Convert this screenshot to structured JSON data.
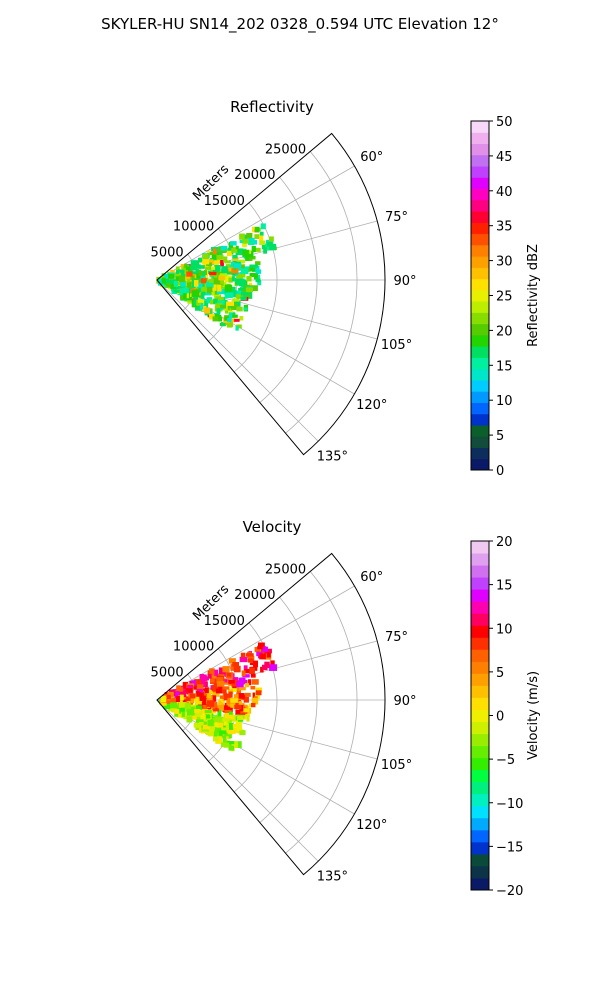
{
  "title": "SKYLER-HU  SN14_202  0328_0.594 UTC Elevation 12°",
  "chart_data": [
    {
      "type": "polar-sector",
      "title": "Reflectivity",
      "range_label": "Meters",
      "range_ticks": [
        "5000",
        "10000",
        "15000",
        "20000",
        "25000"
      ],
      "range_values": [
        5000,
        10000,
        15000,
        20000,
        25000
      ],
      "range_max": 28500,
      "angle_ticks": [
        "60°",
        "75°",
        "90°",
        "105°",
        "120°",
        "135°"
      ],
      "angle_values": [
        60,
        75,
        90,
        105,
        120,
        135
      ],
      "theta_range": [
        50,
        140
      ],
      "colorbar": {
        "label": "Reflectivity dBZ",
        "min": 0,
        "max": 50,
        "ticks": [
          "0",
          "5",
          "10",
          "15",
          "20",
          "25",
          "30",
          "35",
          "40",
          "45",
          "50"
        ],
        "colors": [
          "#0a1a66",
          "#0d2d5c",
          "#124c3a",
          "#0a5f2a",
          "#0033cc",
          "#0066ff",
          "#0099ff",
          "#00ccff",
          "#00e6c8",
          "#00f0a0",
          "#00e060",
          "#22d400",
          "#55cc00",
          "#88dd00",
          "#bbee00",
          "#e6f000",
          "#ffe000",
          "#ffc000",
          "#ffa000",
          "#ff7f00",
          "#ff5000",
          "#ff2000",
          "#ff0030",
          "#ff0080",
          "#ff00c0",
          "#e000ff",
          "#c040ff",
          "#c070f0",
          "#e090e8",
          "#f0b0f0",
          "#f8d8f8"
        ]
      }
    },
    {
      "type": "polar-sector",
      "title": "Velocity",
      "range_label": "Meters",
      "range_ticks": [
        "5000",
        "10000",
        "15000",
        "20000",
        "25000"
      ],
      "range_values": [
        5000,
        10000,
        15000,
        20000,
        25000
      ],
      "range_max": 28500,
      "angle_ticks": [
        "60°",
        "75°",
        "90°",
        "105°",
        "120°",
        "135°"
      ],
      "angle_values": [
        60,
        75,
        90,
        105,
        120,
        135
      ],
      "theta_range": [
        50,
        140
      ],
      "colorbar": {
        "label": "Velocity (m/s)",
        "min": -20,
        "max": 20,
        "ticks": [
          "−20",
          "−15",
          "−10",
          "−5",
          "0",
          "5",
          "10",
          "15",
          "20"
        ],
        "colors": [
          "#0a1a66",
          "#0d3348",
          "#0a4a3a",
          "#0033cc",
          "#0066ff",
          "#00aaff",
          "#00e0ff",
          "#00f0c0",
          "#00f080",
          "#00ff40",
          "#33ee00",
          "#66ee00",
          "#99ee00",
          "#ccf000",
          "#eef000",
          "#ffe000",
          "#ffc000",
          "#ffa000",
          "#ff8000",
          "#ff6000",
          "#ff3000",
          "#ff0000",
          "#ff0060",
          "#ff00b0",
          "#e000ff",
          "#c040ff",
          "#d070f0",
          "#e0a0f0",
          "#f0c8f0"
        ]
      }
    }
  ]
}
